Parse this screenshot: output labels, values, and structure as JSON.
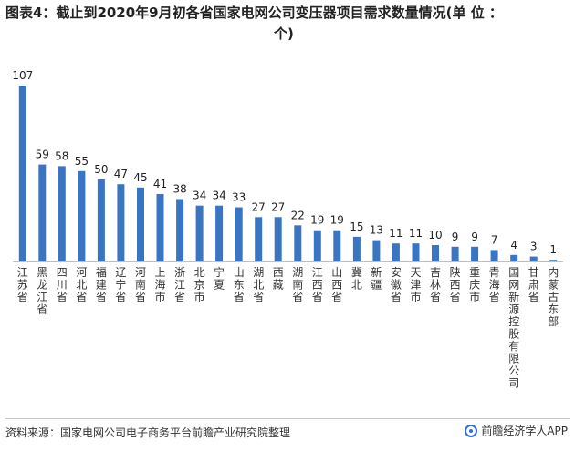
{
  "header": {
    "title_line1": "图表4：截止到2020年9月初各省国家电网公司变压器项目需求数量情况(单 位 ：",
    "title_line2": "个)"
  },
  "footer": {
    "source": "资料来源：国家电网公司电子商务平台前瞻产业研究院整理",
    "brand": "前瞻经济学人APP"
  },
  "colors": {
    "bar": "#3a75c4",
    "axis": "#bfbfbf"
  },
  "chart_data": {
    "type": "bar",
    "title": "",
    "xlabel": "",
    "ylabel": "",
    "ylim": [
      0,
      107
    ],
    "grid": false,
    "categories": [
      "江苏省",
      "黑龙江省",
      "四川省",
      "河北省",
      "福建省",
      "辽宁省",
      "河南省",
      "上海市",
      "浙江省",
      "北京市",
      "宁夏",
      "山东省",
      "湖北省",
      "西藏",
      "湖南省",
      "江西省",
      "山西省",
      "冀北",
      "新疆",
      "安徽省",
      "天津市",
      "吉林省",
      "陕西省",
      "重庆市",
      "青海省",
      "国网新源控股有限公司",
      "甘肃省",
      "内蒙古东部"
    ],
    "values": [
      107,
      59,
      58,
      55,
      50,
      47,
      45,
      41,
      38,
      34,
      34,
      33,
      27,
      27,
      22,
      19,
      19,
      15,
      13,
      11,
      11,
      10,
      9,
      9,
      7,
      4,
      3,
      1
    ]
  }
}
